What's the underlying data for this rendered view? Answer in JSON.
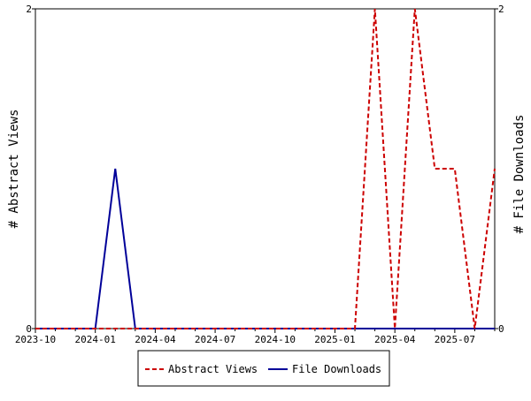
{
  "chart_data": {
    "type": "line",
    "x_dates": [
      "2023-10",
      "2023-11",
      "2023-12",
      "2024-01",
      "2024-02",
      "2024-03",
      "2024-04",
      "2024-05",
      "2024-06",
      "2024-07",
      "2024-08",
      "2024-09",
      "2024-10",
      "2024-11",
      "2024-12",
      "2025-01",
      "2025-02",
      "2025-03",
      "2025-04",
      "2025-05",
      "2025-06",
      "2025-07",
      "2025-08",
      "2025-09"
    ],
    "x_ticks": [
      {
        "label": "2023-10",
        "date": "2023-10"
      },
      {
        "label": "2024-01",
        "date": "2024-01"
      },
      {
        "label": "2024-04",
        "date": "2024-04"
      },
      {
        "label": "2024-07",
        "date": "2024-07"
      },
      {
        "label": "2024-10",
        "date": "2024-10"
      },
      {
        "label": "2025-01",
        "date": "2025-01"
      },
      {
        "label": "2025-04",
        "date": "2025-04"
      },
      {
        "label": "2025-07",
        "date": "2025-07"
      }
    ],
    "series": [
      {
        "name": "Abstract Views",
        "axis": "left",
        "color": "#cc0000",
        "dash": true,
        "values": [
          0,
          0,
          0,
          0,
          0,
          0,
          0,
          0,
          0,
          0,
          0,
          0,
          0,
          0,
          0,
          0,
          0,
          2,
          0,
          2,
          1,
          1,
          0,
          1
        ]
      },
      {
        "name": "File Downloads",
        "axis": "right",
        "color": "#000099",
        "dash": false,
        "values": [
          0,
          0,
          0,
          0,
          1,
          0,
          0,
          0,
          0,
          0,
          0,
          0,
          0,
          0,
          0,
          0,
          0,
          0,
          0,
          0,
          0,
          0,
          0,
          0
        ]
      }
    ],
    "ylabel_left": "# Abstract Views",
    "ylabel_right": "# File Downloads",
    "ylim_left": [
      0,
      2
    ],
    "ylim_right": [
      0,
      2
    ],
    "yticks_left": [
      "0",
      "2"
    ],
    "yticks_right": [
      "0",
      "2"
    ],
    "legend_position": "bottom-center",
    "grid": false
  }
}
